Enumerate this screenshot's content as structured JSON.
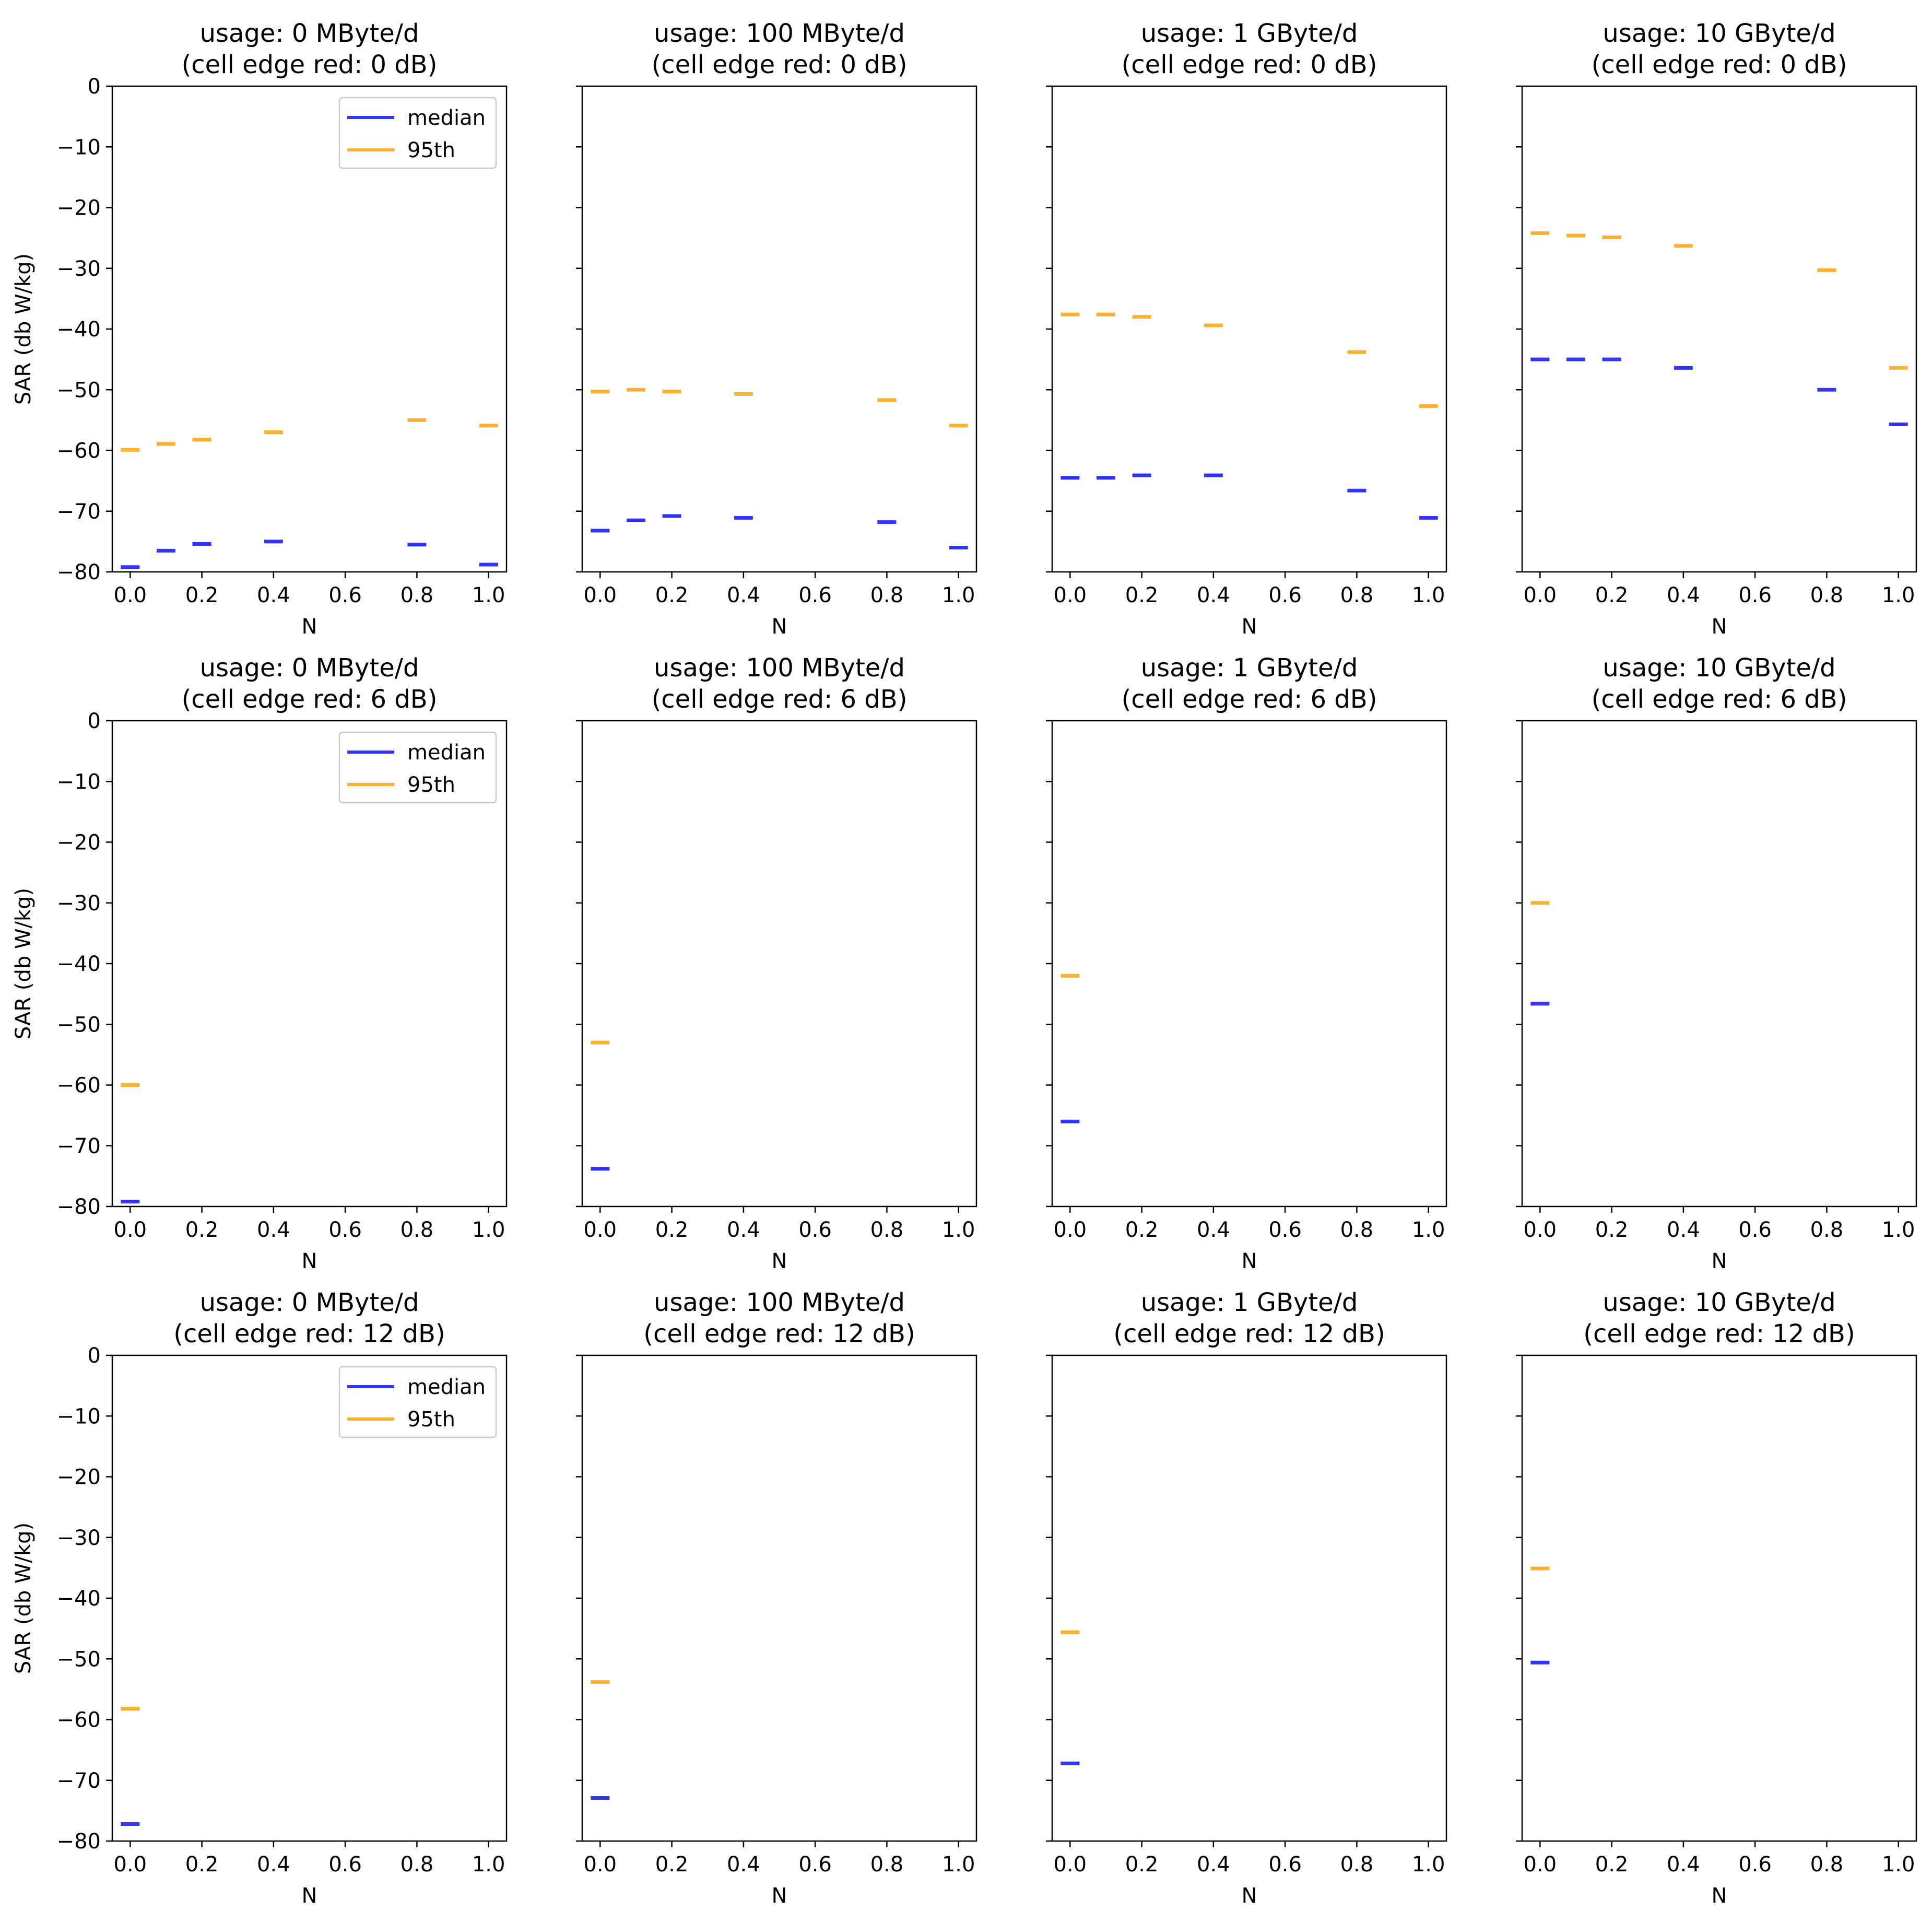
{
  "chart_data": {
    "type": "scatter",
    "marker": "horizontal-dash",
    "layout": {
      "rows": 3,
      "cols": 4,
      "sharey": true
    },
    "xlabel": "N",
    "ylabel": "SAR (db W/kg)",
    "xlim": [
      -0.05,
      1.05
    ],
    "ylim": [
      -80,
      0
    ],
    "xticks": [
      0.0,
      0.2,
      0.4,
      0.6,
      0.8,
      1.0
    ],
    "xtick_labels": [
      "0.0",
      "0.2",
      "0.4",
      "0.6",
      "0.8",
      "1.0"
    ],
    "yticks": [
      0,
      -10,
      -20,
      -30,
      -40,
      -50,
      -60,
      -70,
      -80
    ],
    "ytick_labels": [
      "0",
      "−10",
      "−20",
      "−30",
      "−40",
      "−50",
      "−60",
      "−70",
      "−80"
    ],
    "legend": {
      "placement": "top-right",
      "entries": [
        {
          "label": "median",
          "color": "#3333ff"
        },
        {
          "label": "95th",
          "color": "#ffb02e"
        }
      ]
    },
    "panels": [
      {
        "title_line1": "usage: 0 MByte/d",
        "title_line2": "(cell edge red: 0 dB)",
        "show_legend": true,
        "series": [
          {
            "name": "median",
            "color": "#3333ff",
            "x": [
              0.0,
              0.1,
              0.2,
              0.4,
              0.8,
              1.0
            ],
            "y": [
              -79.2,
              -76.5,
              -75.4,
              -75.0,
              -75.5,
              -78.8
            ]
          },
          {
            "name": "95th",
            "color": "#ffb02e",
            "x": [
              0.0,
              0.1,
              0.2,
              0.4,
              0.8,
              1.0
            ],
            "y": [
              -59.9,
              -58.9,
              -58.2,
              -57.0,
              -55.0,
              -55.9
            ]
          }
        ]
      },
      {
        "title_line1": "usage: 100 MByte/d",
        "title_line2": "(cell edge red: 0 dB)",
        "show_legend": false,
        "series": [
          {
            "name": "median",
            "color": "#3333ff",
            "x": [
              0.0,
              0.1,
              0.2,
              0.4,
              0.8,
              1.0
            ],
            "y": [
              -73.2,
              -71.5,
              -70.8,
              -71.1,
              -71.8,
              -76.0
            ]
          },
          {
            "name": "95th",
            "color": "#ffb02e",
            "x": [
              0.0,
              0.1,
              0.2,
              0.4,
              0.8,
              1.0
            ],
            "y": [
              -50.3,
              -50.0,
              -50.3,
              -50.7,
              -51.7,
              -55.9
            ]
          }
        ]
      },
      {
        "title_line1": "usage: 1 GByte/d",
        "title_line2": "(cell edge red: 0 dB)",
        "show_legend": false,
        "series": [
          {
            "name": "median",
            "color": "#3333ff",
            "x": [
              0.0,
              0.1,
              0.2,
              0.4,
              0.8,
              1.0
            ],
            "y": [
              -64.5,
              -64.5,
              -64.1,
              -64.1,
              -66.6,
              -71.1
            ]
          },
          {
            "name": "95th",
            "color": "#ffb02e",
            "x": [
              0.0,
              0.1,
              0.2,
              0.4,
              0.8,
              1.0
            ],
            "y": [
              -37.6,
              -37.6,
              -38.0,
              -39.4,
              -43.8,
              -52.7
            ]
          }
        ]
      },
      {
        "title_line1": "usage: 10 GByte/d",
        "title_line2": "(cell edge red: 0 dB)",
        "show_legend": false,
        "series": [
          {
            "name": "median",
            "color": "#3333ff",
            "x": [
              0.0,
              0.1,
              0.2,
              0.4,
              0.8,
              1.0
            ],
            "y": [
              -45.0,
              -45.0,
              -45.0,
              -46.4,
              -50.0,
              -55.7
            ]
          },
          {
            "name": "95th",
            "color": "#ffb02e",
            "x": [
              0.0,
              0.1,
              0.2,
              0.4,
              0.8,
              1.0
            ],
            "y": [
              -24.2,
              -24.6,
              -24.9,
              -26.3,
              -30.3,
              -46.4
            ]
          }
        ]
      },
      {
        "title_line1": "usage: 0 MByte/d",
        "title_line2": "(cell edge red: 6 dB)",
        "show_legend": true,
        "series": [
          {
            "name": "median",
            "color": "#3333ff",
            "x": [
              0.0
            ],
            "y": [
              -79.2
            ]
          },
          {
            "name": "95th",
            "color": "#ffb02e",
            "x": [
              0.0
            ],
            "y": [
              -60.0
            ]
          }
        ]
      },
      {
        "title_line1": "usage: 100 MByte/d",
        "title_line2": "(cell edge red: 6 dB)",
        "show_legend": false,
        "series": [
          {
            "name": "median",
            "color": "#3333ff",
            "x": [
              0.0
            ],
            "y": [
              -73.8
            ]
          },
          {
            "name": "95th",
            "color": "#ffb02e",
            "x": [
              0.0
            ],
            "y": [
              -53.0
            ]
          }
        ]
      },
      {
        "title_line1": "usage: 1 GByte/d",
        "title_line2": "(cell edge red: 6 dB)",
        "show_legend": false,
        "series": [
          {
            "name": "median",
            "color": "#3333ff",
            "x": [
              0.0
            ],
            "y": [
              -66.0
            ]
          },
          {
            "name": "95th",
            "color": "#ffb02e",
            "x": [
              0.0
            ],
            "y": [
              -42.0
            ]
          }
        ]
      },
      {
        "title_line1": "usage: 10 GByte/d",
        "title_line2": "(cell edge red: 6 dB)",
        "show_legend": false,
        "series": [
          {
            "name": "median",
            "color": "#3333ff",
            "x": [
              0.0
            ],
            "y": [
              -46.6
            ]
          },
          {
            "name": "95th",
            "color": "#ffb02e",
            "x": [
              0.0
            ],
            "y": [
              -30.0
            ]
          }
        ]
      },
      {
        "title_line1": "usage: 0 MByte/d",
        "title_line2": "(cell edge red: 12 dB)",
        "show_legend": true,
        "series": [
          {
            "name": "median",
            "color": "#3333ff",
            "x": [
              0.0
            ],
            "y": [
              -77.2
            ]
          },
          {
            "name": "95th",
            "color": "#ffb02e",
            "x": [
              0.0
            ],
            "y": [
              -58.2
            ]
          }
        ]
      },
      {
        "title_line1": "usage: 100 MByte/d",
        "title_line2": "(cell edge red: 12 dB)",
        "show_legend": false,
        "series": [
          {
            "name": "median",
            "color": "#3333ff",
            "x": [
              0.0
            ],
            "y": [
              -72.9
            ]
          },
          {
            "name": "95th",
            "color": "#ffb02e",
            "x": [
              0.0
            ],
            "y": [
              -53.8
            ]
          }
        ]
      },
      {
        "title_line1": "usage: 1 GByte/d",
        "title_line2": "(cell edge red: 12 dB)",
        "show_legend": false,
        "series": [
          {
            "name": "median",
            "color": "#3333ff",
            "x": [
              0.0
            ],
            "y": [
              -67.2
            ]
          },
          {
            "name": "95th",
            "color": "#ffb02e",
            "x": [
              0.0
            ],
            "y": [
              -45.6
            ]
          }
        ]
      },
      {
        "title_line1": "usage: 10 GByte/d",
        "title_line2": "(cell edge red: 12 dB)",
        "show_legend": false,
        "series": [
          {
            "name": "median",
            "color": "#3333ff",
            "x": [
              0.0
            ],
            "y": [
              -50.6
            ]
          },
          {
            "name": "95th",
            "color": "#ffb02e",
            "x": [
              0.0
            ],
            "y": [
              -35.1
            ]
          }
        ]
      }
    ]
  }
}
